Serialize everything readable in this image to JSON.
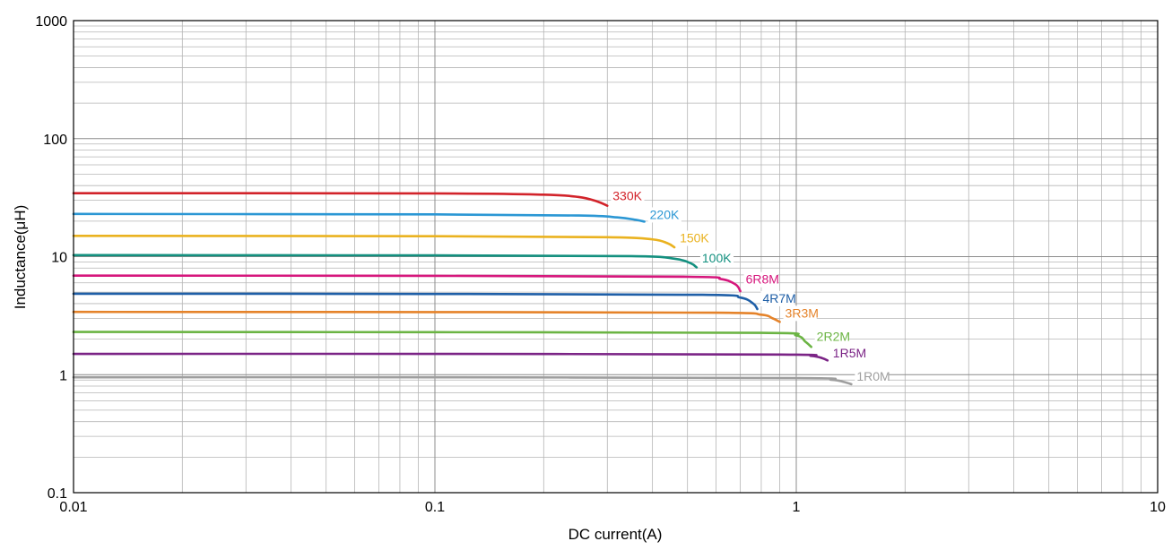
{
  "chart_data": {
    "type": "line",
    "title": "",
    "xlabel": "DC current(A)",
    "ylabel": "Inductance(μH)",
    "xscale": "log",
    "yscale": "log",
    "xlim": [
      0.01,
      10
    ],
    "ylim": [
      0.1,
      1000
    ],
    "grid": true,
    "legend": "inline labels at curve ends",
    "x_tick_labels": [
      {
        "value": 0.01,
        "label": "0.01"
      },
      {
        "value": 0.1,
        "label": "0.1"
      },
      {
        "value": 1,
        "label": "1"
      },
      {
        "value": 10,
        "label": "10"
      }
    ],
    "y_tick_labels": [
      {
        "value": 0.1,
        "label": "0.1"
      },
      {
        "value": 1,
        "label": "1"
      },
      {
        "value": 10,
        "label": "10"
      },
      {
        "value": 100,
        "label": "100"
      },
      {
        "value": 1000,
        "label": "1000"
      }
    ],
    "series": [
      {
        "name": "330K",
        "color": "#d2232a",
        "points": [
          [
            0.01,
            34.5
          ],
          [
            0.1,
            34.3
          ],
          [
            0.2,
            33.5
          ],
          [
            0.25,
            32.0
          ],
          [
            0.28,
            29.5
          ],
          [
            0.3,
            27.0
          ]
        ]
      },
      {
        "name": "220K",
        "color": "#2b97d4",
        "points": [
          [
            0.01,
            23.0
          ],
          [
            0.1,
            22.8
          ],
          [
            0.25,
            22.3
          ],
          [
            0.32,
            21.5
          ],
          [
            0.36,
            20.5
          ],
          [
            0.38,
            19.8
          ]
        ]
      },
      {
        "name": "150K",
        "color": "#eab21f",
        "points": [
          [
            0.01,
            15.0
          ],
          [
            0.1,
            14.9
          ],
          [
            0.3,
            14.6
          ],
          [
            0.4,
            14.0
          ],
          [
            0.44,
            13.0
          ],
          [
            0.46,
            12.0
          ]
        ]
      },
      {
        "name": "100K",
        "color": "#13907f",
        "points": [
          [
            0.01,
            10.3
          ],
          [
            0.1,
            10.25
          ],
          [
            0.35,
            10.1
          ],
          [
            0.46,
            9.6
          ],
          [
            0.51,
            8.8
          ],
          [
            0.53,
            8.1
          ]
        ]
      },
      {
        "name": "6R8M",
        "color": "#d6167c",
        "points": [
          [
            0.01,
            6.9
          ],
          [
            0.1,
            6.88
          ],
          [
            0.5,
            6.75
          ],
          [
            0.62,
            6.45
          ],
          [
            0.68,
            5.8
          ],
          [
            0.7,
            5.1
          ]
        ]
      },
      {
        "name": "4R7M",
        "color": "#1f5fa7",
        "points": [
          [
            0.01,
            4.85
          ],
          [
            0.1,
            4.83
          ],
          [
            0.55,
            4.75
          ],
          [
            0.7,
            4.5
          ],
          [
            0.76,
            4.0
          ],
          [
            0.78,
            3.6
          ]
        ]
      },
      {
        "name": "3R3M",
        "color": "#e5832a",
        "points": [
          [
            0.01,
            3.4
          ],
          [
            0.1,
            3.39
          ],
          [
            0.6,
            3.35
          ],
          [
            0.8,
            3.22
          ],
          [
            0.86,
            3.0
          ],
          [
            0.9,
            2.8
          ]
        ]
      },
      {
        "name": "2R2M",
        "color": "#6bb443",
        "points": [
          [
            0.01,
            2.3
          ],
          [
            0.1,
            2.29
          ],
          [
            0.8,
            2.26
          ],
          [
            1.0,
            2.15
          ],
          [
            1.06,
            1.9
          ],
          [
            1.1,
            1.72
          ]
        ]
      },
      {
        "name": "1R5M",
        "color": "#7b2486",
        "points": [
          [
            0.01,
            1.5
          ],
          [
            0.1,
            1.5
          ],
          [
            0.9,
            1.48
          ],
          [
            1.1,
            1.44
          ],
          [
            1.18,
            1.38
          ],
          [
            1.22,
            1.32
          ]
        ]
      },
      {
        "name": "1R0M",
        "color": "#9e9e9e",
        "points": [
          [
            0.01,
            0.95
          ],
          [
            0.1,
            0.95
          ],
          [
            1.0,
            0.935
          ],
          [
            1.25,
            0.905
          ],
          [
            1.35,
            0.87
          ],
          [
            1.42,
            0.83
          ]
        ]
      }
    ]
  }
}
